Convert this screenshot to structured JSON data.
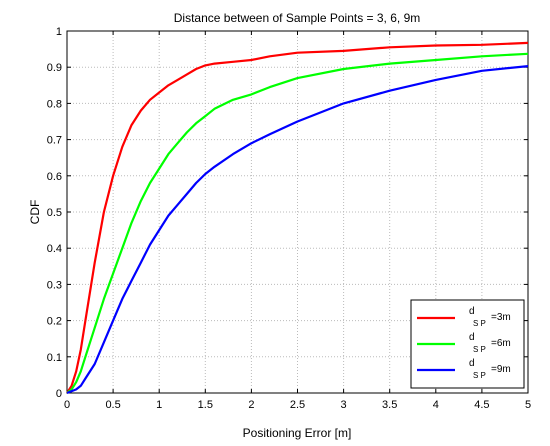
{
  "chart_data": {
    "type": "line",
    "title": "Distance between of Sample Points = 3, 6, 9m",
    "xlabel": "Positioning Error [m]",
    "ylabel": "CDF",
    "xlim": [
      0,
      5
    ],
    "ylim": [
      0,
      1
    ],
    "grid": true,
    "legend_position": "bottom-right",
    "x_ticks": [
      "0",
      "0.5",
      "1",
      "1.5",
      "2",
      "2.5",
      "3",
      "3.5",
      "4",
      "4.5",
      "5"
    ],
    "y_ticks": [
      "0",
      "0.1",
      "0.2",
      "0.3",
      "0.4",
      "0.5",
      "0.6",
      "0.7",
      "0.8",
      "0.9",
      "1"
    ],
    "series": [
      {
        "legend_main": "d",
        "legend_sub": "S P",
        "legend_tail": "=3m",
        "color": "#ff0000",
        "x": [
          0,
          0.05,
          0.1,
          0.15,
          0.2,
          0.3,
          0.4,
          0.5,
          0.6,
          0.7,
          0.8,
          0.9,
          1.0,
          1.1,
          1.2,
          1.3,
          1.4,
          1.5,
          1.6,
          1.8,
          2.0,
          2.2,
          2.5,
          3.0,
          3.5,
          4.0,
          4.5,
          5.0
        ],
        "y": [
          0,
          0.02,
          0.06,
          0.12,
          0.2,
          0.36,
          0.5,
          0.6,
          0.68,
          0.74,
          0.78,
          0.81,
          0.83,
          0.85,
          0.865,
          0.88,
          0.895,
          0.905,
          0.91,
          0.915,
          0.92,
          0.93,
          0.94,
          0.945,
          0.955,
          0.96,
          0.962,
          0.967
        ]
      },
      {
        "legend_main": "d",
        "legend_sub": "S P",
        "legend_tail": "=6m",
        "color": "#00ff00",
        "x": [
          0,
          0.05,
          0.1,
          0.15,
          0.2,
          0.3,
          0.4,
          0.5,
          0.6,
          0.7,
          0.8,
          0.9,
          1.0,
          1.1,
          1.2,
          1.3,
          1.4,
          1.5,
          1.6,
          1.8,
          2.0,
          2.2,
          2.5,
          3.0,
          3.5,
          4.0,
          4.5,
          5.0
        ],
        "y": [
          0,
          0.01,
          0.03,
          0.06,
          0.1,
          0.18,
          0.26,
          0.33,
          0.4,
          0.47,
          0.53,
          0.58,
          0.62,
          0.66,
          0.69,
          0.72,
          0.745,
          0.765,
          0.785,
          0.81,
          0.825,
          0.845,
          0.87,
          0.895,
          0.91,
          0.92,
          0.93,
          0.937
        ]
      },
      {
        "legend_main": "d",
        "legend_sub": "S P",
        "legend_tail": "=9m",
        "color": "#0000ff",
        "x": [
          0,
          0.1,
          0.15,
          0.2,
          0.3,
          0.4,
          0.5,
          0.6,
          0.7,
          0.8,
          0.9,
          1.0,
          1.1,
          1.2,
          1.3,
          1.4,
          1.5,
          1.6,
          1.8,
          2.0,
          2.2,
          2.5,
          3.0,
          3.5,
          4.0,
          4.5,
          5.0
        ],
        "y": [
          0,
          0.01,
          0.02,
          0.04,
          0.08,
          0.14,
          0.2,
          0.26,
          0.31,
          0.36,
          0.41,
          0.45,
          0.49,
          0.52,
          0.55,
          0.58,
          0.605,
          0.625,
          0.66,
          0.69,
          0.715,
          0.75,
          0.8,
          0.835,
          0.865,
          0.89,
          0.903
        ]
      }
    ]
  }
}
